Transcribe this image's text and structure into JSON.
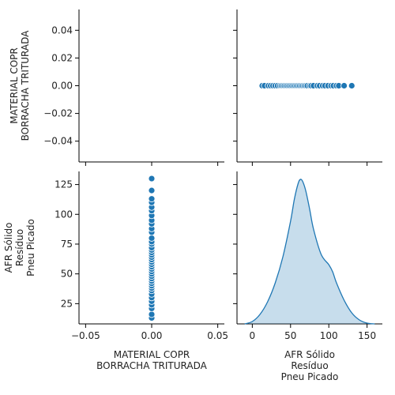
{
  "chart_data": {
    "type": "pairplot",
    "variables": [
      [
        "MATERIAL COPR",
        "BORRACHA TRITURADA"
      ],
      [
        "AFR Sólido",
        "Resíduo",
        "Pneu Picado"
      ]
    ],
    "color": "#1f77b4",
    "kde_fill": "#1f77b4",
    "grid": false,
    "ranges": {
      "v1": [
        -0.055,
        0.055
      ],
      "v2": [
        8,
        136
      ],
      "v2_kde_x": [
        -20,
        170
      ]
    },
    "ticks": {
      "v1": [
        -0.05,
        0.0,
        0.05
      ],
      "v1_labels": [
        "−0.05",
        "0.00",
        "0.05"
      ],
      "v1_y": [
        -0.04,
        -0.02,
        0.0,
        0.02,
        0.04
      ],
      "v1_y_labels": [
        "−0.04",
        "−0.02",
        "0.00",
        "0.02",
        "0.04"
      ],
      "v2": [
        25,
        50,
        75,
        100,
        125
      ],
      "v2_labels": [
        "25",
        "50",
        "75",
        "100",
        "125"
      ],
      "kde_x": [
        0,
        50,
        100,
        150
      ],
      "kde_x_labels": [
        "0",
        "50",
        "100",
        "150"
      ]
    },
    "v2_values": [
      13,
      16,
      21,
      24,
      27,
      30,
      33,
      36,
      38,
      40,
      42,
      44,
      46,
      48,
      50,
      52,
      54,
      56,
      58,
      60,
      62,
      64,
      66,
      68,
      70,
      72,
      75,
      77,
      80,
      85,
      88,
      92,
      95,
      99,
      103,
      106,
      110,
      113,
      120,
      130
    ],
    "kde": {
      "x": [
        -10,
        0,
        10,
        20,
        30,
        40,
        50,
        55,
        60,
        63,
        66,
        70,
        75,
        80,
        90,
        100,
        105,
        110,
        120,
        130,
        140,
        150,
        160
      ],
      "density": [
        0.0,
        0.0003,
        0.0012,
        0.0028,
        0.0052,
        0.0085,
        0.013,
        0.0158,
        0.0178,
        0.0183,
        0.018,
        0.0168,
        0.0145,
        0.012,
        0.0088,
        0.0075,
        0.0066,
        0.0052,
        0.003,
        0.0014,
        0.0005,
        0.0001,
        0.0
      ]
    }
  }
}
